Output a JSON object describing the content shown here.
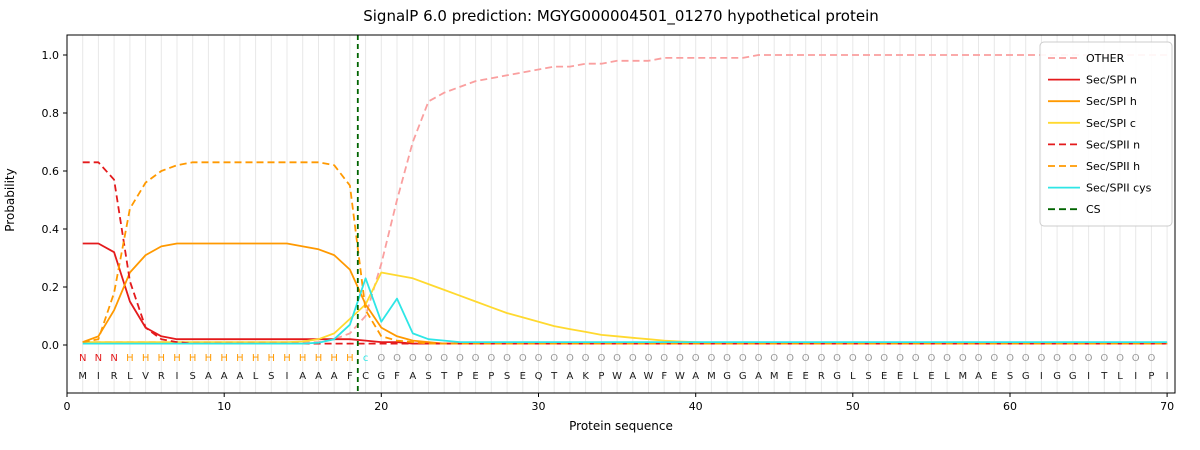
{
  "chart_data": {
    "type": "line",
    "title": "SignalP 6.0 prediction: MGYG000004501_01270 hypothetical protein",
    "xlabel": "Protein sequence",
    "ylabel": "Probability",
    "x_start": 1,
    "xlim": [
      0,
      70.5
    ],
    "ylim": [
      0,
      1.0
    ],
    "xticks": [
      0,
      10,
      20,
      30,
      40,
      50,
      60,
      70
    ],
    "yticks": [
      "0.0",
      "0.2",
      "0.4",
      "0.6",
      "0.8",
      "1.0"
    ],
    "grid": true,
    "grid_color": "#e8e8e8",
    "legend_position": "upper right",
    "cs_label": "CS",
    "cs_position": 18.5,
    "cs_color": "#006400",
    "sequence": "MIRLVRISAAALSIAAAFCGFASTPEPSEQTAKPWAWFWAMGGAMEERGLSEELELMAESGIGGITLIPI",
    "annotation": "NNNHHHHHHHHHHHHHHHcOOOOOOOOOOOOOOOOOOOOOOOOOOOOOOOOOOOOOOOOOOOOOOOOOO",
    "annotation_colors": {
      "N": "#e41a1c",
      "H": "#ff9900",
      "c": "#2ee6e6",
      "O": "#999999"
    },
    "sequence_color": "#1a1a1a",
    "series": [
      {
        "name": "OTHER",
        "color": "#fa9f9f",
        "dash": true,
        "values": [
          0.01,
          0.01,
          0.01,
          0.01,
          0.01,
          0.01,
          0.01,
          0.01,
          0.01,
          0.01,
          0.01,
          0.01,
          0.01,
          0.01,
          0.01,
          0.01,
          0.02,
          0.04,
          0.1,
          0.28,
          0.5,
          0.7,
          0.84,
          0.87,
          0.89,
          0.91,
          0.92,
          0.93,
          0.94,
          0.95,
          0.96,
          0.96,
          0.97,
          0.97,
          0.98,
          0.98,
          0.98,
          0.99,
          0.99,
          0.99,
          0.99,
          0.99,
          0.99,
          1.0,
          1.0,
          1.0,
          1.0,
          1.0,
          1.0,
          1.0,
          1.0,
          1.0,
          1.0,
          1.0,
          1.0,
          1.0,
          1.0,
          1.0,
          1.0,
          1.0,
          1.0,
          1.0,
          1.0,
          1.0,
          1.0,
          1.0,
          1.0,
          1.0,
          1.0,
          1.0
        ]
      },
      {
        "name": "Sec/SPI n",
        "color": "#e41a1c",
        "dash": false,
        "values": [
          0.35,
          0.35,
          0.32,
          0.15,
          0.06,
          0.03,
          0.02,
          0.02,
          0.02,
          0.02,
          0.02,
          0.02,
          0.02,
          0.02,
          0.02,
          0.02,
          0.02,
          0.02,
          0.015,
          0.01,
          0.01,
          0.005,
          0.005,
          0.005,
          0.005,
          0.005,
          0.005,
          0.005,
          0.005,
          0.005,
          0.005,
          0.005,
          0.005,
          0.005,
          0.005,
          0.005,
          0.005,
          0.005,
          0.005,
          0.005,
          0.005,
          0.005,
          0.005,
          0.005,
          0.005,
          0.005,
          0.005,
          0.005,
          0.005,
          0.005,
          0.005,
          0.005,
          0.005,
          0.005,
          0.005,
          0.005,
          0.005,
          0.005,
          0.005,
          0.005,
          0.005,
          0.005,
          0.005,
          0.005,
          0.005,
          0.005,
          0.005,
          0.005,
          0.005,
          0.005
        ]
      },
      {
        "name": "Sec/SPI h",
        "color": "#ff9900",
        "dash": false,
        "values": [
          0.01,
          0.03,
          0.12,
          0.25,
          0.31,
          0.34,
          0.35,
          0.35,
          0.35,
          0.35,
          0.35,
          0.35,
          0.35,
          0.35,
          0.34,
          0.33,
          0.31,
          0.26,
          0.14,
          0.06,
          0.03,
          0.015,
          0.01,
          0.005,
          0.005,
          0.005,
          0.005,
          0.005,
          0.005,
          0.005,
          0.005,
          0.005,
          0.005,
          0.005,
          0.005,
          0.005,
          0.005,
          0.005,
          0.005,
          0.005,
          0.005,
          0.005,
          0.005,
          0.005,
          0.005,
          0.005,
          0.005,
          0.005,
          0.005,
          0.005,
          0.005,
          0.005,
          0.005,
          0.005,
          0.005,
          0.005,
          0.005,
          0.005,
          0.005,
          0.005,
          0.005,
          0.005,
          0.005,
          0.005,
          0.005,
          0.005,
          0.005,
          0.005,
          0.005,
          0.005
        ]
      },
      {
        "name": "Sec/SPI c",
        "color": "#ffd92f",
        "dash": false,
        "values": [
          0.01,
          0.01,
          0.01,
          0.01,
          0.01,
          0.01,
          0.01,
          0.01,
          0.01,
          0.01,
          0.01,
          0.01,
          0.01,
          0.01,
          0.012,
          0.02,
          0.04,
          0.09,
          0.14,
          0.25,
          0.24,
          0.23,
          0.21,
          0.19,
          0.17,
          0.15,
          0.13,
          0.11,
          0.095,
          0.08,
          0.065,
          0.055,
          0.045,
          0.035,
          0.03,
          0.025,
          0.02,
          0.015,
          0.012,
          0.01,
          0.008,
          0.008,
          0.008,
          0.008,
          0.008,
          0.008,
          0.008,
          0.008,
          0.008,
          0.008,
          0.008,
          0.008,
          0.008,
          0.008,
          0.008,
          0.008,
          0.008,
          0.008,
          0.008,
          0.008,
          0.008,
          0.008,
          0.008,
          0.008,
          0.008,
          0.008,
          0.008,
          0.008,
          0.008,
          0.008
        ]
      },
      {
        "name": "Sec/SPII n",
        "color": "#e41a1c",
        "dash": true,
        "values": [
          0.63,
          0.63,
          0.57,
          0.22,
          0.06,
          0.02,
          0.01,
          0.005,
          0.005,
          0.005,
          0.005,
          0.005,
          0.005,
          0.005,
          0.005,
          0.005,
          0.005,
          0.005,
          0.005,
          0.005,
          0.005,
          0.005,
          0.005,
          0.005,
          0.005,
          0.005,
          0.005,
          0.005,
          0.005,
          0.005,
          0.005,
          0.005,
          0.005,
          0.005,
          0.005,
          0.005,
          0.005,
          0.005,
          0.005,
          0.005,
          0.005,
          0.005,
          0.005,
          0.005,
          0.005,
          0.005,
          0.005,
          0.005,
          0.005,
          0.005,
          0.005,
          0.005,
          0.005,
          0.005,
          0.005,
          0.005,
          0.005,
          0.005,
          0.005,
          0.005,
          0.005,
          0.005,
          0.005,
          0.005,
          0.005,
          0.005,
          0.005,
          0.005,
          0.005,
          0.005
        ]
      },
      {
        "name": "Sec/SPII h",
        "color": "#ff9900",
        "dash": true,
        "values": [
          0.01,
          0.02,
          0.18,
          0.47,
          0.56,
          0.6,
          0.62,
          0.63,
          0.63,
          0.63,
          0.63,
          0.63,
          0.63,
          0.63,
          0.63,
          0.63,
          0.62,
          0.55,
          0.12,
          0.03,
          0.015,
          0.01,
          0.005,
          0.005,
          0.005,
          0.005,
          0.005,
          0.005,
          0.005,
          0.005,
          0.005,
          0.005,
          0.005,
          0.005,
          0.005,
          0.005,
          0.005,
          0.005,
          0.005,
          0.005,
          0.005,
          0.005,
          0.005,
          0.005,
          0.005,
          0.005,
          0.005,
          0.005,
          0.005,
          0.005,
          0.005,
          0.005,
          0.005,
          0.005,
          0.005,
          0.005,
          0.005,
          0.005,
          0.005,
          0.005,
          0.005,
          0.005,
          0.005,
          0.005,
          0.005,
          0.005,
          0.005,
          0.005,
          0.005,
          0.005
        ]
      },
      {
        "name": "Sec/SPII cys",
        "color": "#2ee6e6",
        "dash": false,
        "values": [
          0.005,
          0.005,
          0.005,
          0.005,
          0.005,
          0.005,
          0.005,
          0.005,
          0.005,
          0.005,
          0.005,
          0.005,
          0.005,
          0.005,
          0.005,
          0.008,
          0.02,
          0.07,
          0.23,
          0.08,
          0.16,
          0.04,
          0.02,
          0.015,
          0.01,
          0.01,
          0.01,
          0.01,
          0.01,
          0.01,
          0.01,
          0.01,
          0.01,
          0.01,
          0.01,
          0.01,
          0.01,
          0.01,
          0.01,
          0.01,
          0.01,
          0.01,
          0.01,
          0.01,
          0.01,
          0.01,
          0.01,
          0.01,
          0.01,
          0.01,
          0.01,
          0.01,
          0.01,
          0.01,
          0.01,
          0.01,
          0.01,
          0.01,
          0.01,
          0.01,
          0.01,
          0.01,
          0.01,
          0.01,
          0.01,
          0.01,
          0.01,
          0.01,
          0.01,
          0.01
        ]
      }
    ]
  }
}
